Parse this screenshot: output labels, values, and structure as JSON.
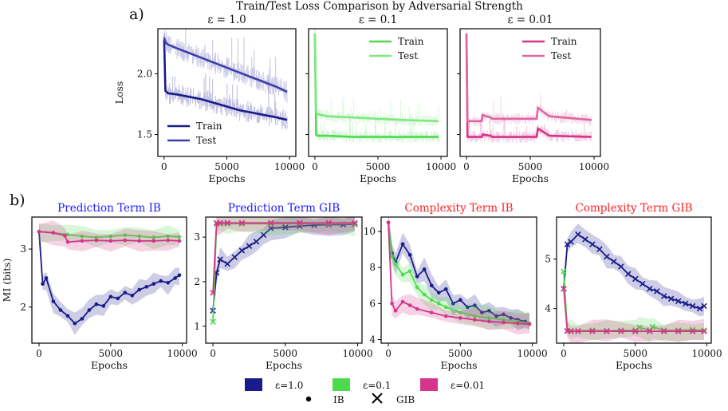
{
  "figure": {
    "panel_a_label": "a)",
    "panel_b_label": "b)",
    "suptitle": "Train/Test Loss Comparison by Adversarial Strength",
    "bottom_legend": {
      "eps_labels": [
        "ε=1.0",
        "ε=0.1",
        "ε=0.01"
      ],
      "marker_labels": [
        "IB",
        "GIB"
      ]
    }
  },
  "colors": {
    "eps_1_0": "#1a1a8c",
    "eps_1_0_test": "#3d3da8",
    "eps_0_1": "#4ddb4d",
    "eps_0_1_test": "#7fe87f",
    "eps_0_01": "#d6338a",
    "eps_0_01_test": "#e066a3",
    "title_ib_prediction": "#1a1aff",
    "title_complexity": "#ff2222"
  },
  "chart_data": [
    {
      "id": "a1",
      "type": "line",
      "title": "ε = 1.0",
      "xlabel": "Epochs",
      "ylabel": "Loss",
      "xlim": [
        -500,
        10500
      ],
      "ylim": [
        1.32,
        2.37
      ],
      "xticks": [
        0,
        5000,
        10000
      ],
      "yticks": [
        1.5,
        2.0
      ],
      "legend": "lower-left",
      "series": [
        {
          "name": "Train",
          "x": [
            0,
            100,
            300,
            1000,
            2000,
            3000,
            4000,
            5000,
            6000,
            7000,
            8000,
            9000,
            9800
          ],
          "values": [
            2.28,
            1.86,
            1.84,
            1.83,
            1.81,
            1.79,
            1.76,
            1.73,
            1.7,
            1.68,
            1.66,
            1.64,
            1.62
          ]
        },
        {
          "name": "Test",
          "x": [
            0,
            100,
            300,
            1000,
            2000,
            3000,
            4000,
            5000,
            6000,
            7000,
            8000,
            9000,
            9800
          ],
          "values": [
            2.3,
            2.26,
            2.24,
            2.21,
            2.17,
            2.13,
            2.09,
            2.05,
            2.01,
            1.97,
            1.93,
            1.89,
            1.85
          ]
        }
      ]
    },
    {
      "id": "a2",
      "type": "line",
      "title": "ε = 0.1",
      "xlabel": "Epochs",
      "ylabel": "",
      "xlim": [
        -500,
        10500
      ],
      "ylim": [
        1.32,
        2.37
      ],
      "xticks": [
        0,
        5000,
        10000
      ],
      "yticks": [],
      "legend": "upper-right",
      "series": [
        {
          "name": "Train",
          "x": [
            0,
            100,
            200,
            500,
            1000,
            3000,
            5000,
            7000,
            9800
          ],
          "values": [
            2.33,
            1.5,
            1.49,
            1.49,
            1.49,
            1.48,
            1.48,
            1.48,
            1.48
          ]
        },
        {
          "name": "Test",
          "x": [
            0,
            100,
            200,
            500,
            1000,
            3000,
            5000,
            7000,
            9800
          ],
          "values": [
            2.33,
            1.68,
            1.67,
            1.66,
            1.65,
            1.64,
            1.63,
            1.62,
            1.61
          ]
        }
      ]
    },
    {
      "id": "a3",
      "type": "line",
      "title": "ε = 0.01",
      "xlabel": "Epochs",
      "ylabel": "",
      "xlim": [
        -500,
        10500
      ],
      "ylim": [
        1.32,
        2.37
      ],
      "xticks": [
        0,
        5000,
        10000
      ],
      "yticks": [],
      "legend": "upper-right",
      "series": [
        {
          "name": "Train",
          "x": [
            0,
            80,
            1200,
            1250,
            1900,
            2000,
            5500,
            5600,
            6500,
            9800
          ],
          "values": [
            2.33,
            1.48,
            1.48,
            1.5,
            1.49,
            1.48,
            1.48,
            1.55,
            1.49,
            1.48
          ]
        },
        {
          "name": "Test",
          "x": [
            0,
            80,
            1200,
            1250,
            1900,
            2000,
            5500,
            5600,
            6500,
            9800
          ],
          "values": [
            2.33,
            1.61,
            1.61,
            1.66,
            1.64,
            1.63,
            1.63,
            1.72,
            1.65,
            1.62
          ]
        }
      ]
    },
    {
      "id": "b1",
      "type": "line",
      "title": "Prediction Term IB",
      "xlabel": "Epochs",
      "ylabel": "MI (bits)",
      "xlim": [
        -500,
        10300
      ],
      "ylim": [
        1.38,
        3.55
      ],
      "xticks": [
        0,
        5000,
        10000
      ],
      "yticks": [
        2,
        3
      ],
      "marker": "dot",
      "series": [
        {
          "name": "ε=1.0",
          "x": [
            0,
            250,
            500,
            1000,
            1500,
            2000,
            2500,
            3000,
            3500,
            4000,
            4500,
            5000,
            5500,
            6000,
            6500,
            7000,
            7500,
            8000,
            8500,
            9000,
            9500,
            9800
          ],
          "values": [
            3.3,
            2.4,
            2.5,
            2.1,
            1.95,
            1.85,
            1.72,
            1.8,
            1.95,
            2.05,
            2.02,
            2.18,
            2.15,
            2.25,
            2.2,
            2.3,
            2.35,
            2.4,
            2.45,
            2.42,
            2.5,
            2.55
          ]
        },
        {
          "name": "ε=0.1",
          "x": [
            0,
            1000,
            2000,
            3000,
            4000,
            5000,
            6000,
            7000,
            8000,
            9000,
            9800
          ],
          "values": [
            3.3,
            3.28,
            3.25,
            3.22,
            3.2,
            3.22,
            3.24,
            3.22,
            3.2,
            3.22,
            3.21
          ]
        },
        {
          "name": "ε=0.01",
          "x": [
            0,
            1000,
            1800,
            2000,
            3000,
            4000,
            5000,
            6000,
            7000,
            8000,
            9000,
            9800
          ],
          "values": [
            3.3,
            3.28,
            3.23,
            3.12,
            3.14,
            3.15,
            3.14,
            3.15,
            3.14,
            3.14,
            3.15,
            3.14
          ]
        }
      ]
    },
    {
      "id": "b2",
      "type": "line",
      "title": "Prediction Term GIB",
      "xlabel": "Epochs",
      "ylabel": "",
      "xlim": [
        -500,
        10300
      ],
      "ylim": [
        0.62,
        3.45
      ],
      "xticks": [
        0,
        5000,
        10000
      ],
      "yticks": [
        1,
        2,
        3
      ],
      "marker": "x",
      "series": [
        {
          "name": "ε=1.0",
          "x": [
            0,
            250,
            500,
            1000,
            1500,
            2000,
            2500,
            3000,
            3500,
            4000,
            5000,
            6000,
            7000,
            8000,
            9000,
            9800
          ],
          "values": [
            1.35,
            2.2,
            2.5,
            2.4,
            2.55,
            2.7,
            2.8,
            2.9,
            3.05,
            3.2,
            3.22,
            3.25,
            3.27,
            3.28,
            3.28,
            3.29
          ]
        },
        {
          "name": "ε=0.1",
          "x": [
            0,
            250,
            500,
            1000,
            2000,
            4000,
            6000,
            8000,
            9800
          ],
          "values": [
            1.1,
            3.3,
            3.3,
            3.3,
            3.3,
            3.3,
            3.3,
            3.3,
            3.3
          ]
        },
        {
          "name": "ε=0.01",
          "x": [
            0,
            250,
            500,
            1000,
            2000,
            4000,
            6000,
            8000,
            9800
          ],
          "values": [
            1.75,
            3.32,
            3.32,
            3.32,
            3.32,
            3.32,
            3.32,
            3.32,
            3.32
          ]
        }
      ]
    },
    {
      "id": "b3",
      "type": "line",
      "title": "Complexity Term IB",
      "xlabel": "Epochs",
      "ylabel": "",
      "xlim": [
        -500,
        10300
      ],
      "ylim": [
        3.8,
        10.8
      ],
      "xticks": [
        0,
        5000,
        10000
      ],
      "yticks": [
        4,
        6,
        8,
        10
      ],
      "marker": "dot",
      "series": [
        {
          "name": "ε=1.0",
          "x": [
            0,
            250,
            500,
            1000,
            1500,
            2000,
            2500,
            3000,
            3500,
            4000,
            4500,
            5000,
            5500,
            6000,
            6500,
            7000,
            7500,
            8000,
            8500,
            9000,
            9500,
            9800
          ],
          "values": [
            10.5,
            8.8,
            8.3,
            9.3,
            8.7,
            7.5,
            7.9,
            7.0,
            6.6,
            6.8,
            6.0,
            6.2,
            5.8,
            5.9,
            5.5,
            5.6,
            5.3,
            5.4,
            5.2,
            5.1,
            5.0,
            4.9
          ]
        },
        {
          "name": "ε=0.1",
          "x": [
            0,
            250,
            500,
            1000,
            1500,
            2000,
            2500,
            3000,
            3500,
            4000,
            5000,
            6000,
            7000,
            8000,
            9000,
            9800
          ],
          "values": [
            10.5,
            8.6,
            8.2,
            7.6,
            7.8,
            6.9,
            6.5,
            6.2,
            6.0,
            5.8,
            5.5,
            5.3,
            5.2,
            5.1,
            5.0,
            4.9
          ]
        },
        {
          "name": "ε=0.01",
          "x": [
            0,
            250,
            500,
            1000,
            1500,
            2000,
            3000,
            4000,
            5000,
            6000,
            7000,
            8000,
            9000,
            9800
          ],
          "values": [
            10.5,
            6.0,
            5.6,
            6.1,
            5.9,
            5.7,
            5.5,
            5.3,
            5.2,
            5.1,
            5.0,
            4.95,
            4.9,
            4.85
          ]
        }
      ]
    },
    {
      "id": "b4",
      "type": "line",
      "title": "Complexity Term GIB",
      "xlabel": "Epochs",
      "ylabel": "",
      "xlim": [
        -500,
        10300
      ],
      "ylim": [
        3.3,
        5.85
      ],
      "xticks": [
        0,
        5000,
        10000
      ],
      "yticks": [
        4,
        5
      ],
      "marker": "x",
      "series": [
        {
          "name": "ε=1.0",
          "x": [
            0,
            250,
            500,
            1000,
            1500,
            2000,
            2500,
            3000,
            3500,
            4000,
            4500,
            5000,
            5500,
            6000,
            6500,
            7000,
            7500,
            8000,
            8500,
            9000,
            9500,
            9800
          ],
          "values": [
            4.4,
            5.3,
            5.35,
            5.5,
            5.4,
            5.3,
            5.2,
            5.05,
            4.95,
            4.85,
            4.7,
            4.6,
            4.5,
            4.4,
            4.35,
            4.25,
            4.2,
            4.15,
            4.1,
            4.05,
            4.0,
            4.05
          ]
        },
        {
          "name": "ε=0.1",
          "x": [
            0,
            250,
            500,
            1000,
            2000,
            3000,
            4000,
            5000,
            5300,
            6000,
            6200,
            7000,
            8000,
            9000,
            9800
          ],
          "values": [
            4.75,
            3.55,
            3.55,
            3.55,
            3.56,
            3.55,
            3.56,
            3.56,
            3.62,
            3.56,
            3.63,
            3.56,
            3.56,
            3.57,
            3.56
          ]
        },
        {
          "name": "ε=0.01",
          "x": [
            0,
            250,
            500,
            1000,
            2000,
            3000,
            4000,
            5000,
            6000,
            7000,
            8000,
            9000,
            9800
          ],
          "values": [
            4.4,
            3.54,
            3.54,
            3.54,
            3.54,
            3.54,
            3.54,
            3.54,
            3.54,
            3.54,
            3.54,
            3.54,
            3.54
          ]
        }
      ]
    }
  ]
}
